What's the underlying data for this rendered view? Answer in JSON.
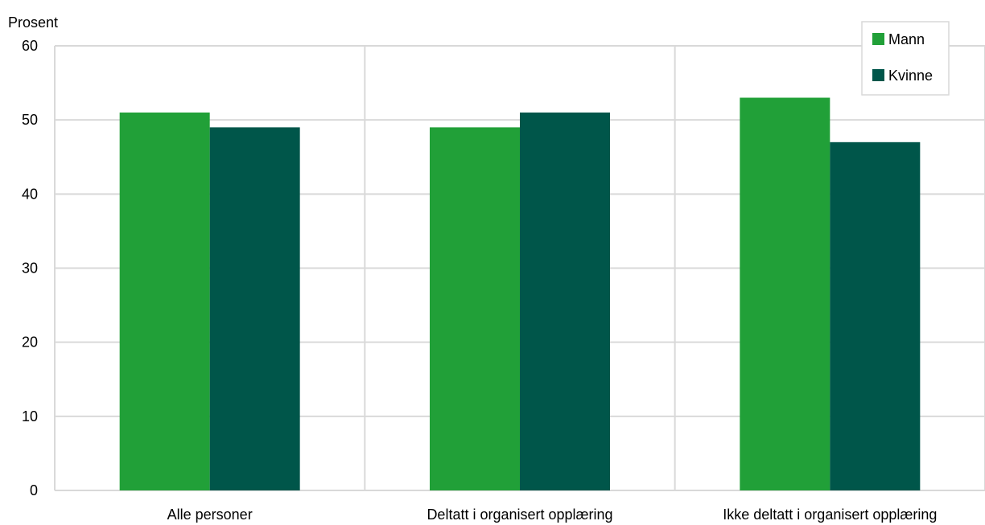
{
  "chart_data": {
    "type": "bar",
    "ylabel": "Prosent",
    "ylim": [
      0,
      60
    ],
    "yticks": [
      0,
      10,
      20,
      30,
      40,
      50,
      60
    ],
    "categories": [
      "Alle personer",
      "Deltatt i organisert opplæring",
      "Ikke deltatt i organisert opplæring"
    ],
    "series": [
      {
        "name": "Mann",
        "color": "#21a038",
        "values": [
          51,
          49,
          53
        ]
      },
      {
        "name": "Kvinne",
        "color": "#00564a",
        "values": [
          49,
          51,
          47
        ]
      }
    ],
    "grid": true,
    "legend_position": "top-right"
  }
}
